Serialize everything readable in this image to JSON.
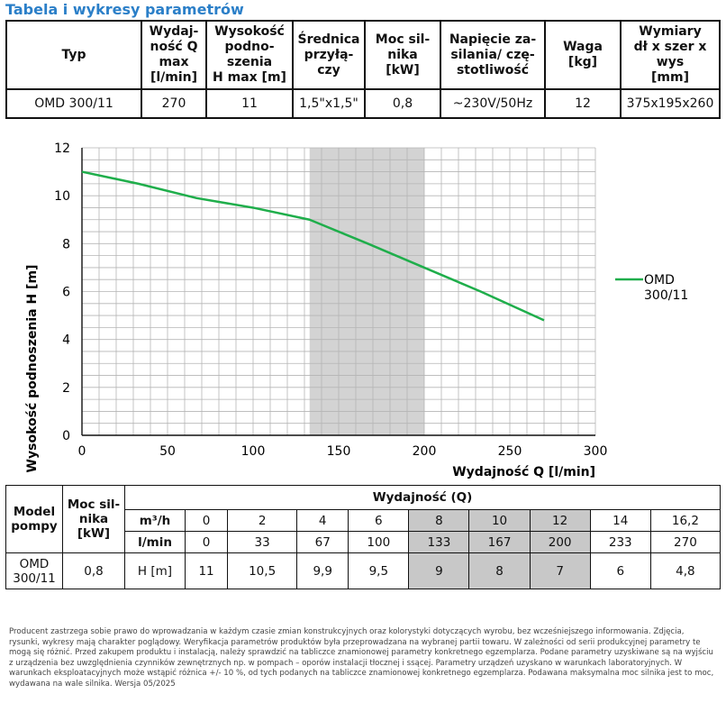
{
  "title": "Tabela i wykresy parametrów",
  "spec_table": {
    "headers": [
      "Typ",
      "Wydaj-\nność Q\nmax\n[l/min]",
      "Wysokość\npodno-\nszenia\nH max [m]",
      "Średnica\nprzyłą-\nczy",
      "Moc sil-\nnika\n[kW]",
      "Napięcie za-\nsilania/ czę-\nstotliwość",
      "Waga\n[kg]",
      "Wymiary\ndł x szer x wys\n[mm]"
    ],
    "row": [
      "OMD 300/11",
      "270",
      "11",
      "1,5\"x1,5\"",
      "0,8",
      "~230V/50Hz",
      "12",
      "375x195x260"
    ]
  },
  "chart_data": {
    "type": "line",
    "xlabel": "Wydajność Q [l/min]",
    "ylabel": "Wysokość podnoszenia H [m]",
    "xlim": [
      0,
      300
    ],
    "ylim": [
      0,
      12
    ],
    "x_ticks": [
      "0",
      "50",
      "100",
      "150",
      "200",
      "250",
      "300"
    ],
    "y_ticks": [
      "0",
      "2",
      "4",
      "6",
      "8",
      "10",
      "12"
    ],
    "grid": true,
    "highlight_range": [
      133,
      200
    ],
    "legend_position": "right",
    "line_color": "#1fae4b",
    "highlight_color": "#d3d3d3",
    "series": [
      {
        "name": "OMD 300/11",
        "x": [
          0,
          33,
          67,
          100,
          133,
          167,
          200,
          233,
          270
        ],
        "y": [
          11,
          10.5,
          9.9,
          9.5,
          9,
          8,
          7,
          6,
          4.8
        ]
      }
    ]
  },
  "flow_table": {
    "group_header": "Wydajność (Q)",
    "col_model": "Model pompy",
    "col_power": "Moc sil-\nnika\n[kW]",
    "unit_m3h": "m³/h",
    "unit_lmin": "l/min",
    "unit_h": "H [m]",
    "m3h": [
      "0",
      "2",
      "4",
      "6",
      "8",
      "10",
      "12",
      "14",
      "16,2"
    ],
    "lmin": [
      "0",
      "33",
      "67",
      "100",
      "133",
      "167",
      "200",
      "233",
      "270"
    ],
    "model": "OMD\n300/11",
    "power": "0,8",
    "h": [
      "11",
      "10,5",
      "9,9",
      "9,5",
      "9",
      "8",
      "7",
      "6",
      "4,8"
    ]
  },
  "disclaimer": "Producent zastrzega sobie prawo do wprowadzania w każdym czasie zmian konstrukcyjnych oraz kolorystyki dotyczących wyrobu, bez wcześniejszego informowania. Zdjęcia, rysunki, wykresy mają charakter poglądowy. Weryfikacja parametrów produktów była przeprowadzana na wybranej partii towaru. W zależności od serii produkcyjnej parametry te mogą się różnić. Przed zakupem produktu i instalacją, należy sprawdzić na tabliczce znamionowej parametry konkretnego egzemplarza. Podane parametry uzyskiwane są na wyjściu z urządzenia bez uwzględnienia czynników zewnętrznych np. w pompach – oporów instalacji tłocznej i ssącej. Parametry urządzeń uzyskano w warunkach laboratoryjnych. W warunkach eksploatacyjnych może wstąpić różnica +/- 10 %, od tych podanych na tabliczce znamionowej konkretnego egzemplarza. Podawana maksymalna moc silnika jest to moc, wydawana na wale silnika. Wersja 05/2025"
}
